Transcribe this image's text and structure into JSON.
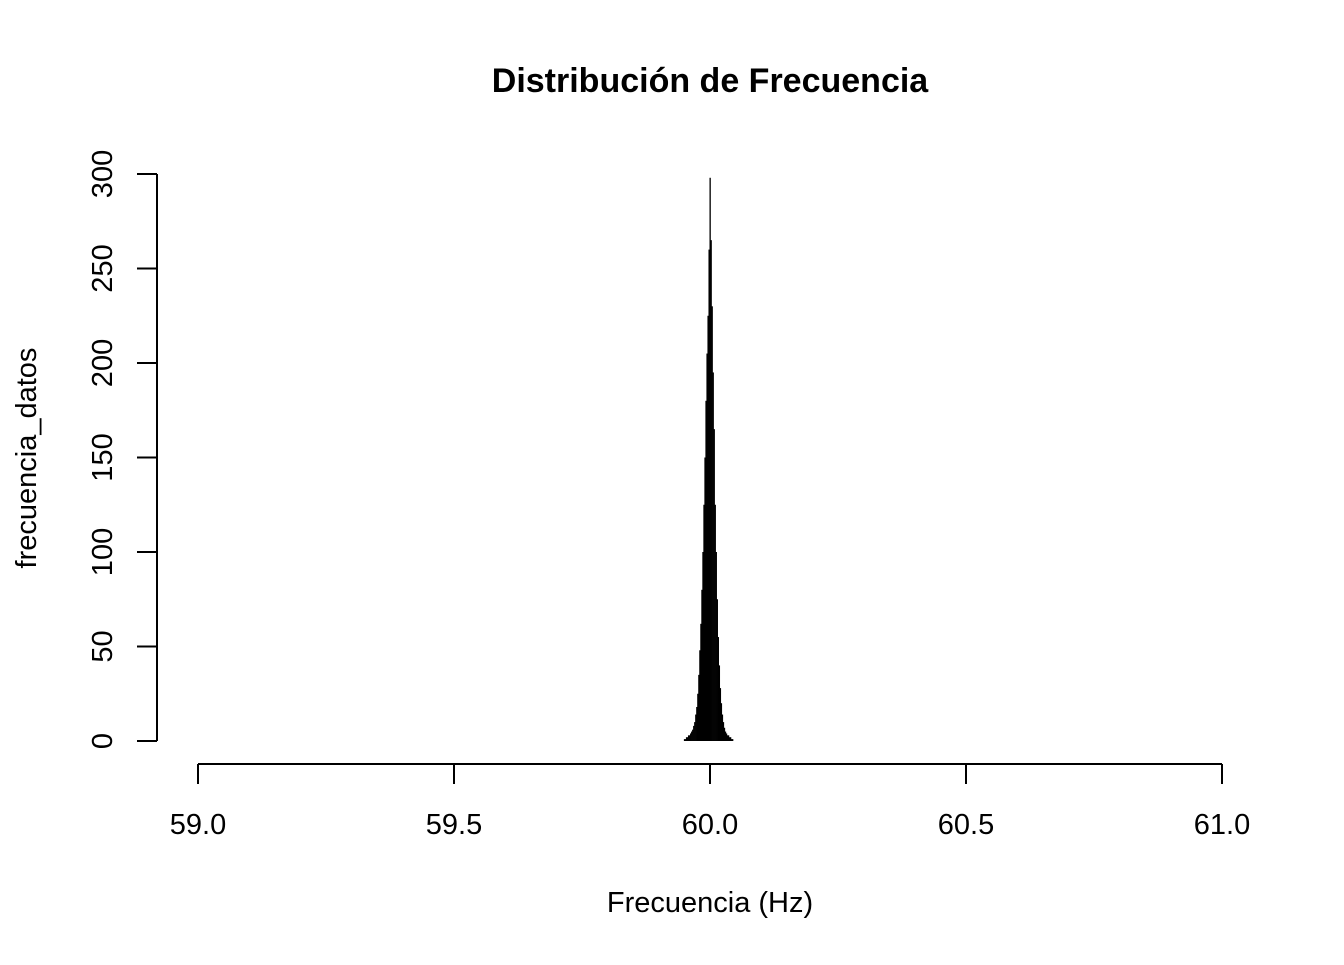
{
  "chart_data": {
    "type": "bar",
    "title": "Distribución de Frecuencia",
    "xlabel": "Frecuencia (Hz)",
    "ylabel": "frecuencia_datos",
    "xlim": [
      59.0,
      61.0
    ],
    "ylim": [
      0,
      300
    ],
    "xticks": [
      "59.0",
      "59.5",
      "60.0",
      "60.5",
      "61.0"
    ],
    "yticks": [
      "0",
      "50",
      "100",
      "150",
      "200",
      "250",
      "300"
    ],
    "grid": false,
    "bar_color": "#000000",
    "x": [
      59.95,
      59.952,
      59.954,
      59.956,
      59.958,
      59.96,
      59.962,
      59.964,
      59.966,
      59.968,
      59.97,
      59.972,
      59.974,
      59.976,
      59.978,
      59.98,
      59.982,
      59.984,
      59.986,
      59.988,
      59.99,
      59.992,
      59.994,
      59.996,
      59.998,
      60.0,
      60.002,
      60.004,
      60.006,
      60.008,
      60.01,
      60.012,
      60.014,
      60.016,
      60.018,
      60.02,
      60.022,
      60.024,
      60.026,
      60.028,
      60.03,
      60.032,
      60.034,
      60.036,
      60.038,
      60.04,
      60.042,
      60.044
    ],
    "values": [
      1,
      1,
      2,
      2,
      3,
      3,
      4,
      5,
      6,
      8,
      10,
      14,
      18,
      25,
      35,
      48,
      62,
      80,
      100,
      125,
      150,
      180,
      205,
      225,
      260,
      298,
      265,
      230,
      195,
      165,
      125,
      100,
      75,
      55,
      40,
      28,
      20,
      14,
      10,
      7,
      5,
      4,
      3,
      3,
      2,
      2,
      1,
      1
    ]
  }
}
